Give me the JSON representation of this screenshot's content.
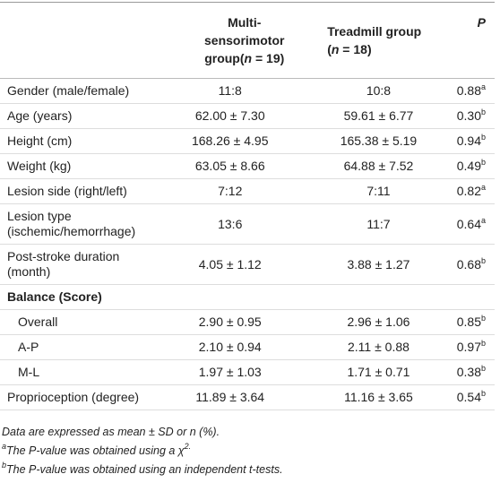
{
  "table": {
    "header": [
      [
        "Multi-sensorimotor group(",
        "n",
        " = 19)"
      ],
      [
        "Treadmill group (",
        "n",
        " = 18)"
      ],
      [
        "P"
      ]
    ],
    "rows": [
      {
        "cells": [
          "Gender (male/female)",
          "11:8",
          "10:8",
          "0.88"
        ],
        "note": "a"
      },
      {
        "cells": [
          "Age (years)",
          "62.00 ± 7.30",
          "59.61 ± 6.77",
          "0.30"
        ],
        "note": "b"
      },
      {
        "cells": [
          "Height (cm)",
          "168.26 ± 4.95",
          "165.38 ± 5.19",
          "0.94"
        ],
        "note": "b"
      },
      {
        "cells": [
          "Weight (kg)",
          "63.05 ± 8.66",
          "64.88 ± 7.52",
          "0.49"
        ],
        "note": "b"
      },
      {
        "cells": [
          "Lesion side (right/left)",
          "7:12",
          "7:11",
          "0.82"
        ],
        "note": "a"
      },
      {
        "cells": [
          "Lesion type (ischemic/hemorrhage)",
          "13:6",
          "11:7",
          "0.64"
        ],
        "note": "a"
      },
      {
        "cells": [
          "Post-stroke duration (month)",
          "4.05 ± 1.12",
          "3.88 ± 1.27",
          "0.68"
        ],
        "note": "b"
      },
      {
        "cells": [
          "Balance (Score)"
        ],
        "bold": true
      },
      {
        "cells": [
          "Overall",
          "2.90 ± 0.95",
          "2.96 ± 1.06",
          "0.85"
        ],
        "note": "b",
        "indent": true
      },
      {
        "cells": [
          "A-P",
          "2.10 ± 0.94",
          "2.11 ± 0.88",
          "0.97"
        ],
        "note": "b",
        "indent": true
      },
      {
        "cells": [
          "M-L",
          "1.97 ± 1.03",
          "1.71 ± 0.71",
          "0.38"
        ],
        "note": "b",
        "indent": true
      },
      {
        "cells": [
          "Proprioception (degree)",
          "11.89 ± 3.64",
          "11.16 ± 3.65",
          "0.54"
        ],
        "note": "b"
      }
    ],
    "footnotes": [
      {
        "text": "Data are expressed as mean ± SD or n (%)."
      },
      {
        "mark": "a",
        "text": "The P-value was obtained using a χ",
        "sup": "2."
      },
      {
        "mark": "b",
        "text": "The P-value was obtained using an independent t-tests."
      }
    ]
  }
}
